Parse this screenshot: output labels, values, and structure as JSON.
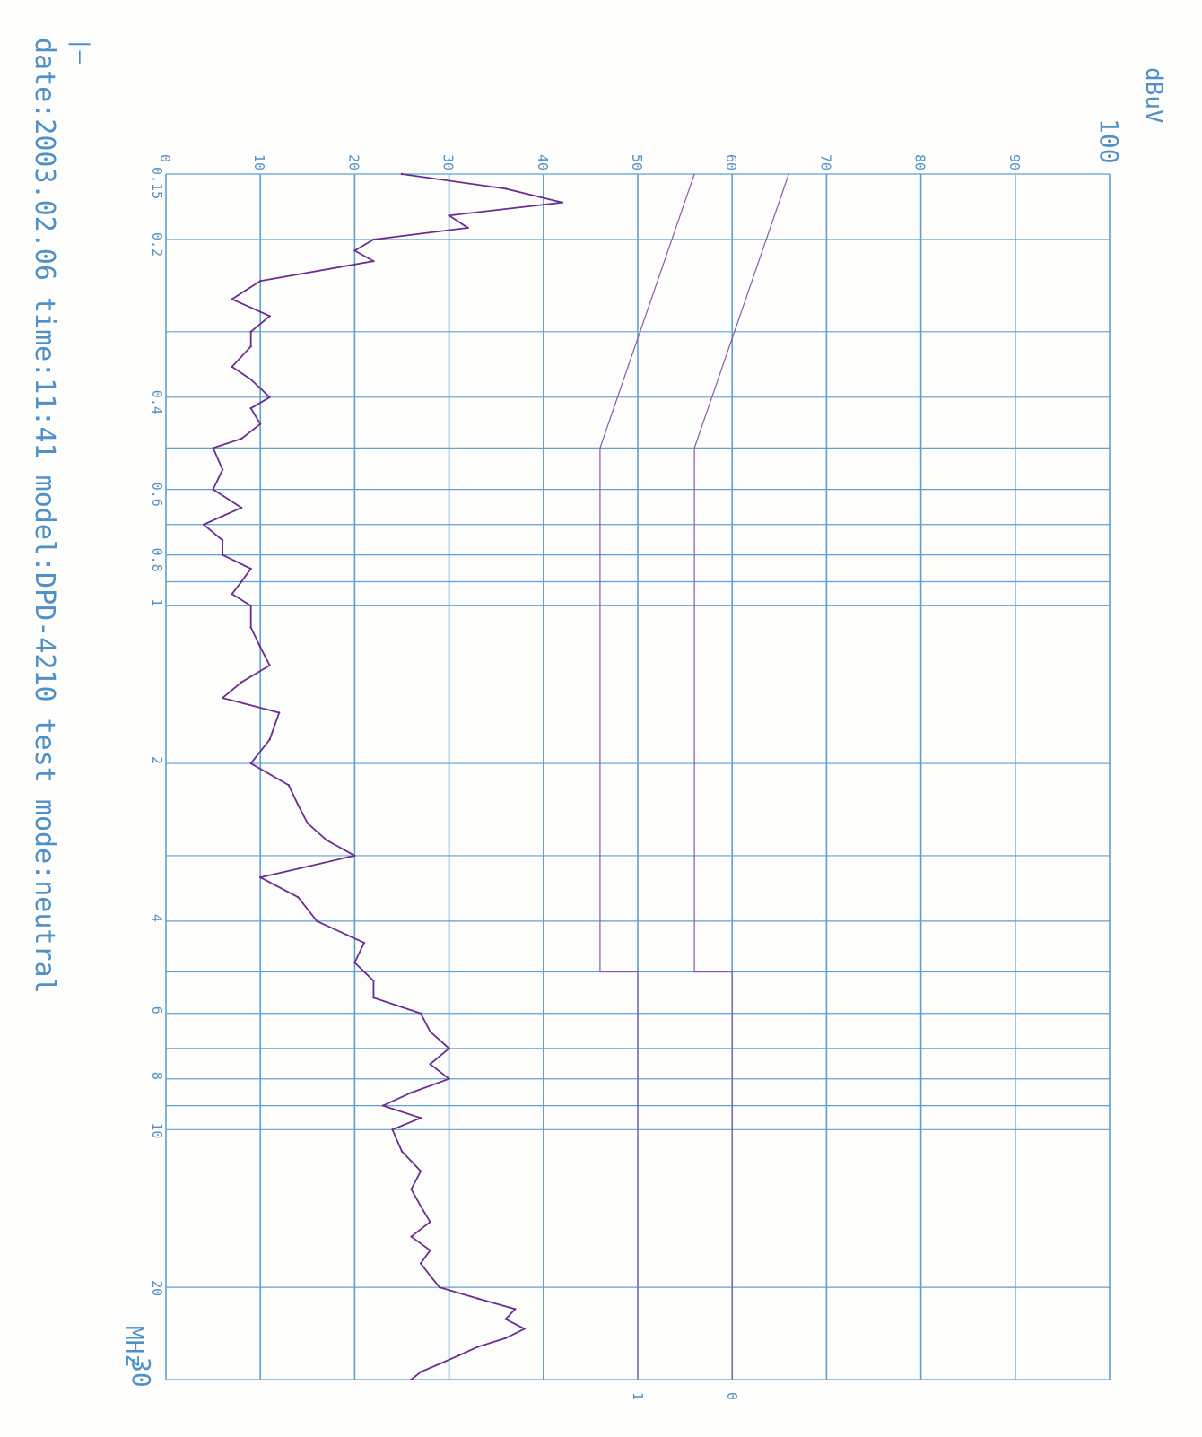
{
  "header": {
    "unit": "dBuV",
    "footer": "date:2003.02.06 time:11:41 model:DPD-4210 test mode:neutral",
    "x_unit": "MHz",
    "mark": "|—"
  },
  "chart_data": {
    "type": "line",
    "title": "",
    "xlabel": "MHz",
    "ylabel": "dBuV",
    "xscale": "log",
    "xlim": [
      0.15,
      30
    ],
    "ylim": [
      0,
      100
    ],
    "grid": true,
    "x_ticks": [
      "0.15",
      "0.2",
      "0.4",
      "0.6",
      "0.8",
      "1",
      "2",
      "4",
      "6",
      "8",
      "10",
      "20",
      "30"
    ],
    "y_ticks": [
      "0",
      "10",
      "20",
      "30",
      "40",
      "50",
      "60",
      "70",
      "80",
      "90",
      "100"
    ],
    "limit_labels": [
      "1",
      "0"
    ],
    "series": [
      {
        "name": "",
        "x": [
          0.15,
          0.16,
          0.17,
          0.18,
          0.19,
          0.2,
          0.21,
          0.22,
          0.24,
          0.26,
          0.28,
          0.3,
          0.32,
          0.35,
          0.37,
          0.4,
          0.42,
          0.45,
          0.48,
          0.5,
          0.55,
          0.6,
          0.65,
          0.7,
          0.75,
          0.8,
          0.85,
          0.9,
          0.95,
          1.0,
          1.1,
          1.2,
          1.3,
          1.4,
          1.5,
          1.6,
          1.8,
          2.0,
          2.2,
          2.4,
          2.6,
          2.8,
          3.0,
          3.3,
          3.6,
          4.0,
          4.4,
          4.8,
          5.2,
          5.6,
          6.0,
          6.5,
          7.0,
          7.5,
          8.0,
          8.5,
          9.0,
          9.5,
          10,
          11,
          12,
          13,
          14,
          15,
          16,
          17,
          18,
          19,
          20,
          21,
          22,
          23,
          24,
          25,
          26,
          27,
          28,
          29,
          30
        ],
        "y": [
          25,
          36,
          42,
          30,
          32,
          22,
          20,
          22,
          10,
          7,
          11,
          9,
          9,
          7,
          9,
          11,
          9,
          10,
          8,
          5,
          6,
          5,
          8,
          4,
          6,
          6,
          9,
          8,
          7,
          9,
          9,
          10,
          11,
          8,
          6,
          12,
          11,
          9,
          13,
          14,
          15,
          17,
          20,
          10,
          14,
          16,
          21,
          20,
          22,
          22,
          27,
          28,
          30,
          28,
          30,
          26,
          23,
          27,
          24,
          25,
          27,
          26,
          27,
          28,
          26,
          28,
          27,
          28,
          29,
          33,
          37,
          36,
          38,
          36,
          33,
          31,
          29,
          27,
          26
        ]
      }
    ],
    "limits": [
      {
        "label": "1",
        "x": [
          0.15,
          0.5,
          0.5,
          5.0,
          5.0,
          30
        ],
        "y": [
          56,
          46,
          46,
          46,
          50,
          50
        ]
      },
      {
        "label": "0",
        "x": [
          0.15,
          0.5,
          0.5,
          5.0,
          5.0,
          30
        ],
        "y": [
          66,
          56,
          56,
          56,
          60,
          60
        ]
      }
    ]
  }
}
